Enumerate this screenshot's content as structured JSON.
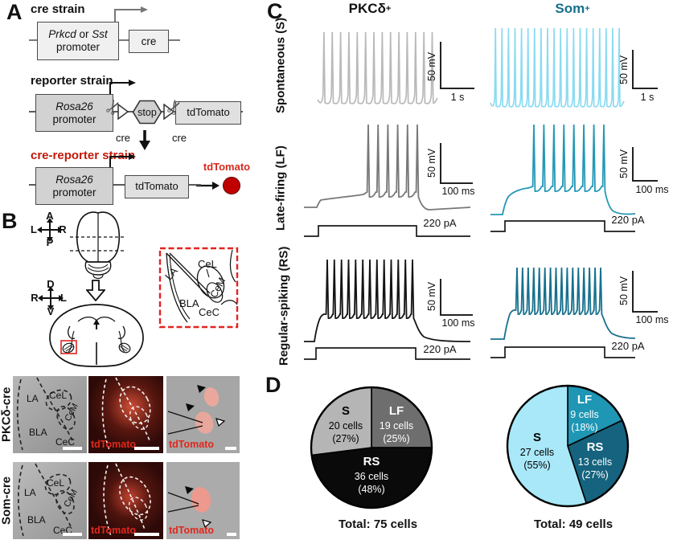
{
  "figure": {
    "panelA": {
      "label": "A",
      "cre_strain_title": "cre strain",
      "gene1": "Prkcd",
      "or_text": "or",
      "gene2": "Sst",
      "promoter_text": "promoter",
      "cre_box": "cre",
      "reporter_strain_title": "reporter strain",
      "rosa": "Rosa26",
      "stop_text": "stop",
      "tdtomato_box": "tdTomato",
      "cre_under_left": "cre",
      "cre_under_right": "cre",
      "cre_reporter_title": "cre-reporter strain",
      "tdtomato_label": "tdTomato"
    },
    "panelB": {
      "label": "B",
      "compass_top": {
        "n": "A",
        "s": "P",
        "w": "L",
        "e": "R"
      },
      "compass_bottom": {
        "n": "D",
        "s": "V",
        "w": "R",
        "e": "L"
      },
      "inset": {
        "LA": "LA",
        "CeL": "CeL",
        "CeM": "CeM",
        "BLA": "BLA",
        "CeC": "CeC"
      },
      "rows": [
        {
          "strain": "PKCδ-cre",
          "LA": "LA",
          "CeL": "CeL",
          "CeM": "CeM",
          "BLA": "BLA",
          "CeC": "CeC",
          "td1": "tdTomato",
          "td2": "tdTomato"
        },
        {
          "strain": "Som-cre",
          "LA": "LA",
          "CeL": "CeL",
          "CeM": "CeM",
          "BLA": "BLA",
          "CeC": "CeC",
          "td1": "tdTomato",
          "td2": "tdTomato"
        }
      ]
    },
    "panelC": {
      "label": "C",
      "col1": "PKCδ",
      "col1_sup": "+",
      "col2": "Som",
      "col2_sup": "+",
      "row1_label": "Spontaneous (S)",
      "row2_label": "Late-firing (LF)",
      "row3_label": "Regular-spiking (RS)",
      "mv": "50 mV",
      "s1": "1 s",
      "ms": "100 ms",
      "pa": "220 pA"
    },
    "panelD": {
      "label": "D"
    }
  },
  "icons": {
    "scissors": "✂"
  },
  "colors": {
    "som_accent": "#15708b",
    "trace_pkc_s": "#b9b9b9",
    "trace_pkc_lf": "#787878",
    "trace_pkc_rs": "#141414",
    "trace_som_s": "#8adbf2",
    "trace_som_lf": "#2398b6",
    "trace_som_rs": "#17708d",
    "tdtomato_red": "#c00000"
  },
  "chart_data": [
    {
      "type": "pie",
      "group": "PKCδ+",
      "total_label": "Total: 75 cells",
      "legend_position": "inside",
      "start_angle_deg": 0,
      "direction": "clockwise",
      "slices": [
        {
          "label": "LF",
          "cells": 19,
          "cells_text": "19 cells",
          "pct_text": "(25%)",
          "value": 25,
          "color": "#6e6e6e"
        },
        {
          "label": "RS",
          "cells": 36,
          "cells_text": "36 cells",
          "pct_text": "(48%)",
          "value": 48,
          "color": "#0a0a0a"
        },
        {
          "label": "S",
          "cells": 20,
          "cells_text": "20 cells",
          "pct_text": "(27%)",
          "value": 27,
          "color": "#b5b5b5"
        }
      ]
    },
    {
      "type": "pie",
      "group": "Som+",
      "total_label": "Total: 49 cells",
      "legend_position": "inside",
      "start_angle_deg": 0,
      "direction": "clockwise",
      "slices": [
        {
          "label": "LF",
          "cells": 9,
          "cells_text": "9 cells",
          "pct_text": "(18%)",
          "value": 18,
          "color": "#1e96b4"
        },
        {
          "label": "RS",
          "cells": 13,
          "cells_text": "13 cells",
          "pct_text": "(27%)",
          "value": 27,
          "color": "#15637e"
        },
        {
          "label": "S",
          "cells": 27,
          "cells_text": "27 cells",
          "pct_text": "(55%)",
          "value": 55,
          "color": "#a9e8f8"
        }
      ]
    }
  ]
}
